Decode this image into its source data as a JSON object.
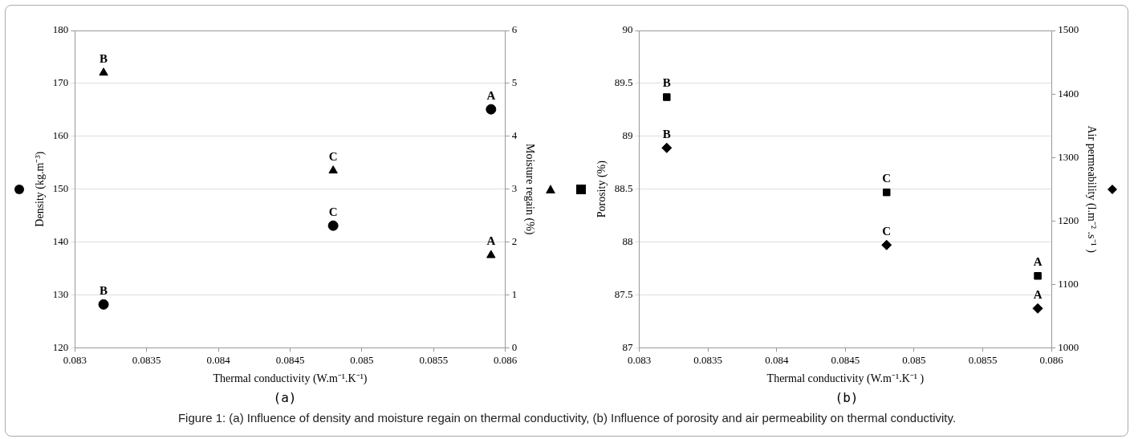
{
  "chart_data": [
    {
      "type": "scatter",
      "title": "(a)",
      "xlabel": "Thermal conductivity (W.m⁻¹.K⁻¹)",
      "ylabel": "Density (kg.m⁻³)",
      "y2label": "Moisture regain (%)",
      "x": [
        0.0832,
        0.0848,
        0.0859
      ],
      "xlim": [
        0.083,
        0.086
      ],
      "xticks": [
        0.083,
        0.0835,
        0.084,
        0.0845,
        0.085,
        0.0855,
        0.086
      ],
      "ylim": [
        120,
        180
      ],
      "yticks": [
        120,
        130,
        140,
        150,
        160,
        170,
        180
      ],
      "y2lim": [
        0,
        6
      ],
      "y2ticks": [
        0,
        1,
        2,
        3,
        4,
        5,
        6
      ],
      "grid": "y",
      "legend": false,
      "series": [
        {
          "color": "#000000",
          "marker": "circle",
          "values": [
            128.2,
            143.1,
            165.1
          ]
        },
        {
          "color": "#000000",
          "marker": "triangle",
          "axis": "y2",
          "values": [
            5.2,
            3.35,
            1.75
          ]
        }
      ],
      "annotations": [
        {
          "text": "B",
          "x": 0.0832,
          "y": 128.2
        },
        {
          "text": "C",
          "x": 0.0848,
          "y": 143.1
        },
        {
          "text": "A",
          "x": 0.0859,
          "y": 165.1
        },
        {
          "text": "B",
          "x": 0.0832,
          "y": 172
        },
        {
          "text": "C",
          "x": 0.0848,
          "y": 153.5
        },
        {
          "text": "A",
          "x": 0.0859,
          "y": 137.5
        }
      ]
    },
    {
      "type": "scatter",
      "title": "(b)",
      "xlabel": "Thermal conductivity (W.m⁻¹.K⁻¹ )",
      "ylabel": "Porosity (%)",
      "y2label": "Air permeability (l.m⁻² .s⁻¹ )",
      "x": [
        0.0832,
        0.0848,
        0.0859
      ],
      "xlim": [
        0.083,
        0.086
      ],
      "xticks": [
        0.083,
        0.0835,
        0.084,
        0.0845,
        0.085,
        0.0855,
        0.086
      ],
      "ylim": [
        87,
        90
      ],
      "yticks": [
        87,
        87.5,
        88,
        88.5,
        89,
        89.5,
        90
      ],
      "y2lim": [
        1000,
        1500
      ],
      "y2ticks": [
        1000,
        1100,
        1200,
        1300,
        1400,
        1500
      ],
      "grid": "y",
      "legend": false,
      "series": [
        {
          "color": "#000000",
          "marker": "square",
          "values": [
            89.37,
            88.47,
            87.68
          ]
        },
        {
          "color": "#000000",
          "marker": "diamond",
          "axis": "y2",
          "values": [
            1315,
            1162,
            1062
          ]
        }
      ],
      "annotations": [
        {
          "text": "B",
          "x": 0.0832,
          "y": 89.37
        },
        {
          "text": "C",
          "x": 0.0848,
          "y": 88.47
        },
        {
          "text": "A",
          "x": 0.0859,
          "y": 87.68
        },
        {
          "text": "B",
          "x": 0.0832,
          "y": 88.89
        },
        {
          "text": "C",
          "x": 0.0848,
          "y": 87.97
        },
        {
          "text": "A",
          "x": 0.0859,
          "y": 87.37
        },
        "Figure 1: (a) Influence of density and moisture regain on thermal conductivity, (b) Influence of porosity and air permeability on thermal conductivity."
      ]
    }
  ]
}
